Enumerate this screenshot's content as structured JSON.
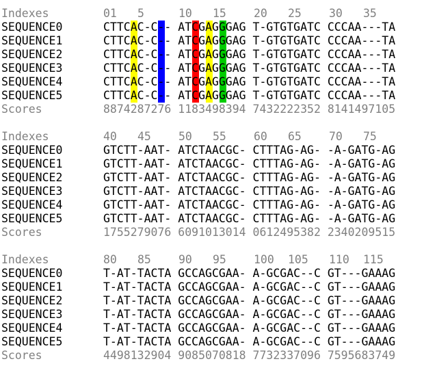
{
  "blocks": [
    {
      "index_label": "Indexes",
      "indexes": [
        {
          "text": "01",
          "pos": 0
        },
        {
          "text": "5",
          "pos": 5
        },
        {
          "text": "10",
          "pos": 11
        },
        {
          "text": "15",
          "pos": 16
        },
        {
          "text": "20",
          "pos": 22
        },
        {
          "text": "25",
          "pos": 27
        },
        {
          "text": "30",
          "pos": 33
        },
        {
          "text": "35",
          "pos": 38
        }
      ],
      "sequences": [
        {
          "name": "SEQUENCE0",
          "residues": "CTTCAC-C-- ATCGAGGGAG T-GTGTGATC CCCAA---TA"
        },
        {
          "name": "SEQUENCE1",
          "residues": "CTTCAC-C-- ATCGAGGGAG T-GTGTGATC CCCAA---TA"
        },
        {
          "name": "SEQUENCE2",
          "residues": "CTTCAC-C-- ATCGAGGGAG T-GTGTGATC CCCAA---TA"
        },
        {
          "name": "SEQUENCE3",
          "residues": "CTTCAC-C-- ATCGAGGGAG T-GTGTGATC CCCAA---TA"
        },
        {
          "name": "SEQUENCE4",
          "residues": "CTTCAC-C-- ATCGAGGGAG T-GTGTGATC CCCAA---TA"
        },
        {
          "name": "SEQUENCE5",
          "residues": "CTTCAC-C-- ATCGAGGGAG T-GTGTGATC CCCAA---TA"
        }
      ],
      "scores_label": "Scores",
      "scores": "8874287276 1183498394 7432222352 8141497105",
      "highlights": [
        {
          "col": 4,
          "color": "#ffff00"
        },
        {
          "col": 8,
          "color": "#0000ff"
        },
        {
          "col": 13,
          "color": "#ff0000"
        },
        {
          "col": 15,
          "color": "#ffff00"
        },
        {
          "col": 17,
          "color": "#00cc00"
        }
      ]
    },
    {
      "index_label": "Indexes",
      "indexes": [
        {
          "text": "40",
          "pos": 0
        },
        {
          "text": "45",
          "pos": 5
        },
        {
          "text": "50",
          "pos": 11
        },
        {
          "text": "55",
          "pos": 16
        },
        {
          "text": "60",
          "pos": 22
        },
        {
          "text": "65",
          "pos": 27
        },
        {
          "text": "70",
          "pos": 33
        },
        {
          "text": "75",
          "pos": 38
        }
      ],
      "sequences": [
        {
          "name": "SEQUENCE0",
          "residues": "GTCTT-AAT- ATCTAACGC- CTTTAG-AG- -A-GATG-AG"
        },
        {
          "name": "SEQUENCE1",
          "residues": "GTCTT-AAT- ATCTAACGC- CTTTAG-AG- -A-GATG-AG"
        },
        {
          "name": "SEQUENCE2",
          "residues": "GTCTT-AAT- ATCTAACGC- CTTTAG-AG- -A-GATG-AG"
        },
        {
          "name": "SEQUENCE3",
          "residues": "GTCTT-AAT- ATCTAACGC- CTTTAG-AG- -A-GATG-AG"
        },
        {
          "name": "SEQUENCE4",
          "residues": "GTCTT-AAT- ATCTAACGC- CTTTAG-AG- -A-GATG-AG"
        },
        {
          "name": "SEQUENCE5",
          "residues": "GTCTT-AAT- ATCTAACGC- CTTTAG-AG- -A-GATG-AG"
        }
      ],
      "scores_label": "Scores",
      "scores": "1755279076 6091013014 0612495382 2340209515",
      "highlights": []
    },
    {
      "index_label": "Indexes",
      "indexes": [
        {
          "text": "80",
          "pos": 0
        },
        {
          "text": "85",
          "pos": 5
        },
        {
          "text": "90",
          "pos": 11
        },
        {
          "text": "95",
          "pos": 16
        },
        {
          "text": "100",
          "pos": 22
        },
        {
          "text": "105",
          "pos": 27
        },
        {
          "text": "110",
          "pos": 33
        },
        {
          "text": "115",
          "pos": 38
        }
      ],
      "sequences": [
        {
          "name": "SEQUENCE0",
          "residues": "T-AT-TACTA GCCAGCGAA- A-GCGAC--C GT---GAAAG"
        },
        {
          "name": "SEQUENCE1",
          "residues": "T-AT-TACTA GCCAGCGAA- A-GCGAC--C GT---GAAAG"
        },
        {
          "name": "SEQUENCE2",
          "residues": "T-AT-TACTA GCCAGCGAA- A-GCGAC--C GT---GAAAG"
        },
        {
          "name": "SEQUENCE3",
          "residues": "T-AT-TACTA GCCAGCGAA- A-GCGAC--C GT---GAAAG"
        },
        {
          "name": "SEQUENCE4",
          "residues": "T-AT-TACTA GCCAGCGAA- A-GCGAC--C GT---GAAAG"
        },
        {
          "name": "SEQUENCE5",
          "residues": "T-AT-TACTA GCCAGCGAA- A-GCGAC--C GT---GAAAG"
        }
      ],
      "scores_label": "Scores",
      "scores": "4498132904 9085070818 7732337096 7595683749",
      "highlights": []
    }
  ]
}
